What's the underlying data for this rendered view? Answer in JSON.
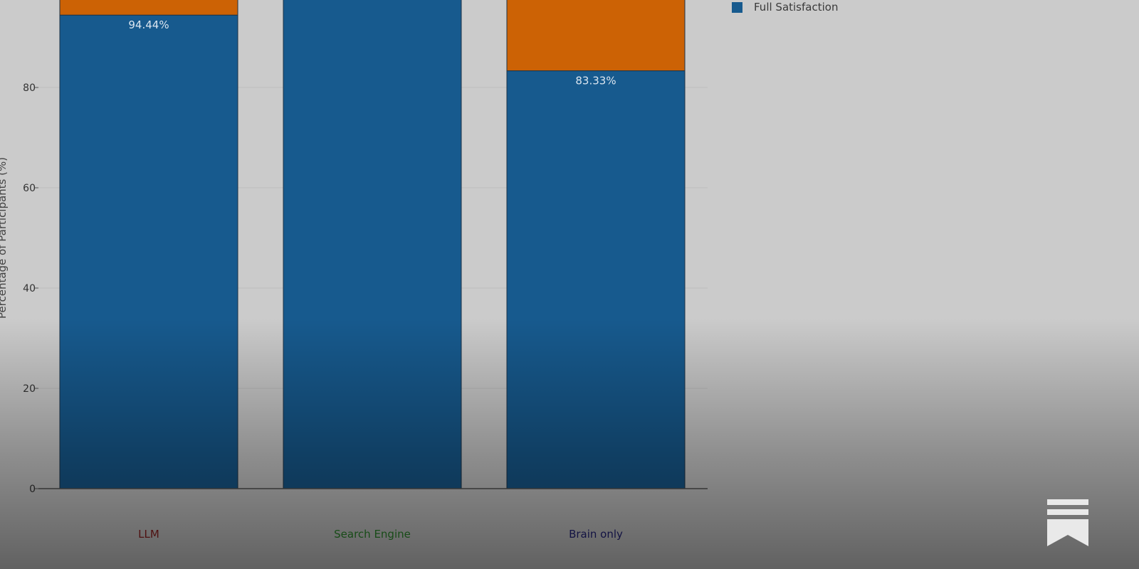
{
  "chart_data": {
    "type": "bar",
    "stacked": true,
    "categories": [
      "LLM",
      "Search Engine",
      "Brain only"
    ],
    "category_colors": [
      "#8f1f1f",
      "#2b8a2b",
      "#22227a"
    ],
    "series": [
      {
        "name": "Full Satisfaction",
        "color": "#175a8e",
        "values": [
          94.44,
          100,
          83.33
        ],
        "labels": [
          "94.44%",
          "",
          "83.33%"
        ]
      },
      {
        "name": "",
        "color": "#cc6205",
        "values": [
          5.56,
          0,
          16.67
        ],
        "labels": [
          "",
          "",
          ""
        ]
      }
    ],
    "ylabel": "Percentage of Participants (%)",
    "yticks": [
      0,
      20,
      40,
      60,
      80
    ],
    "ylim": [
      0,
      100
    ],
    "grid": true,
    "legend": "top-right"
  },
  "legend": {
    "items": [
      {
        "label": "Full Satisfaction",
        "color": "#175a8e"
      }
    ]
  },
  "icons": {
    "bookmark": "bookmark-icon"
  }
}
